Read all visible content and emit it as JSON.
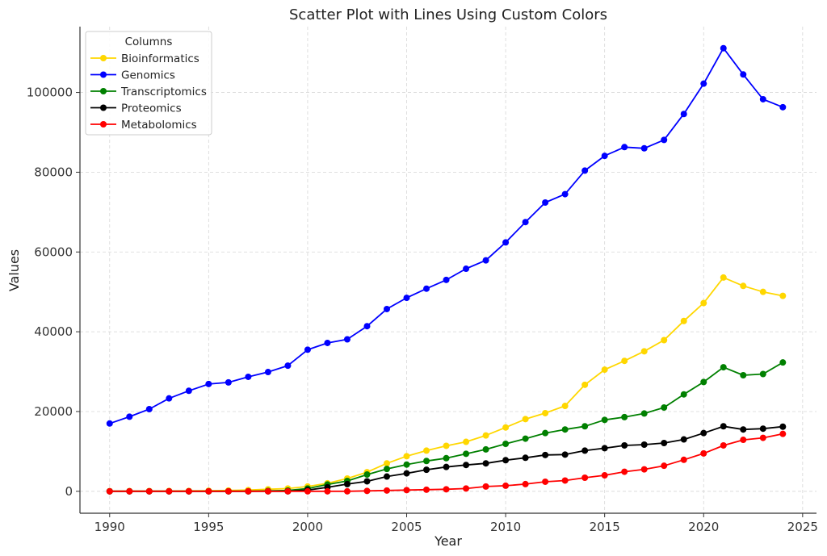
{
  "chart_data": {
    "type": "line",
    "title": "Scatter Plot with Lines Using Custom Colors",
    "xlabel": "Year",
    "ylabel": "Values",
    "xlim": [
      1988.5,
      2025.7
    ],
    "ylim": [
      -5500,
      116500
    ],
    "xticks": [
      1990,
      1995,
      2000,
      2005,
      2010,
      2015,
      2020,
      2025
    ],
    "yticks": [
      0,
      20000,
      40000,
      60000,
      80000,
      100000
    ],
    "grid": true,
    "legend": {
      "title": "Columns",
      "placement": "top-left"
    },
    "x": [
      1990,
      1991,
      1992,
      1993,
      1994,
      1995,
      1996,
      1997,
      1998,
      1999,
      2000,
      2001,
      2002,
      2003,
      2004,
      2005,
      2006,
      2007,
      2008,
      2009,
      2010,
      2011,
      2012,
      2013,
      2014,
      2015,
      2016,
      2017,
      2018,
      2019,
      2020,
      2021,
      2022,
      2023,
      2024
    ],
    "series": [
      {
        "name": "Bioinformatics",
        "color": "#FFD700",
        "values": [
          50,
          60,
          70,
          80,
          100,
          150,
          200,
          300,
          500,
          700,
          1200,
          2000,
          3200,
          4800,
          7000,
          8800,
          10200,
          11400,
          12400,
          14000,
          16000,
          18100,
          19600,
          21400,
          26700,
          30500,
          32700,
          35100,
          37900,
          42700,
          47200,
          53600,
          51500,
          50000,
          49000
        ]
      },
      {
        "name": "Genomics",
        "color": "#0000FF",
        "values": [
          17000,
          18700,
          20600,
          23300,
          25200,
          26900,
          27300,
          28700,
          29900,
          31500,
          35500,
          37200,
          38100,
          41400,
          45700,
          48500,
          50800,
          53000,
          55800,
          57900,
          62400,
          67500,
          72400,
          74500,
          80400,
          84100,
          86300,
          86000,
          88100,
          94600,
          102200,
          111100,
          104500,
          98300,
          96300
        ]
      },
      {
        "name": "Transcriptomics",
        "color": "#008000",
        "values": [
          0,
          0,
          0,
          0,
          0,
          0,
          0,
          0,
          100,
          200,
          700,
          1700,
          2600,
          4200,
          5600,
          6700,
          7600,
          8300,
          9400,
          10500,
          11900,
          13200,
          14600,
          15500,
          16300,
          17900,
          18600,
          19500,
          21000,
          24300,
          27400,
          31100,
          29100,
          29400,
          32300
        ]
      },
      {
        "name": "Proteomics",
        "color": "#000000",
        "values": [
          0,
          0,
          0,
          0,
          0,
          0,
          0,
          0,
          0,
          0,
          300,
          1000,
          1800,
          2500,
          3700,
          4500,
          5400,
          6100,
          6600,
          7000,
          7800,
          8400,
          9100,
          9200,
          10200,
          10800,
          11500,
          11700,
          12100,
          13000,
          14600,
          16300,
          15500,
          15700,
          16200
        ]
      },
      {
        "name": "Metabolomics",
        "color": "#FF0000",
        "values": [
          0,
          0,
          0,
          0,
          0,
          0,
          0,
          0,
          0,
          0,
          0,
          0,
          0,
          100,
          200,
          300,
          400,
          500,
          700,
          1200,
          1400,
          1800,
          2400,
          2700,
          3400,
          4000,
          4900,
          5500,
          6400,
          7900,
          9500,
          11500,
          12900,
          13400,
          14400
        ]
      }
    ]
  }
}
